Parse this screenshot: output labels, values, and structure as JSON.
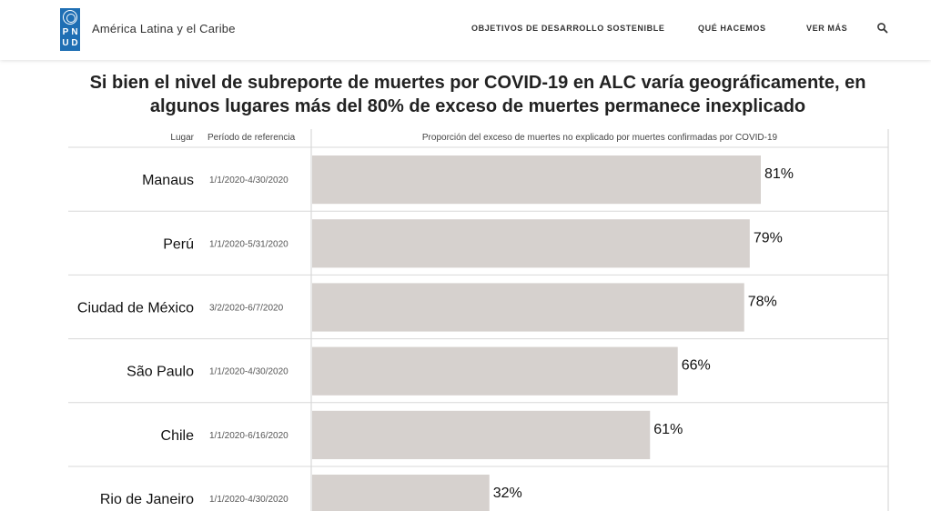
{
  "header": {
    "logo_letters": [
      "P",
      "N",
      "U",
      "D"
    ],
    "brand": "América Latina y el Caribe",
    "nav": [
      "OBJETIVOS DE DESARROLLO SOSTENIBLE",
      "QUÉ HACEMOS",
      "VER MÁS"
    ],
    "search_icon": "search-icon",
    "logo_color": "#1f6fb4"
  },
  "chart_data": {
    "type": "bar",
    "title": "Si bien el nivel de subreporte de muertes por COVID-19 en ALC varía geográficamente, en algunos lugares más del 80% de exceso de muertes permanece inexplicado",
    "columns": {
      "place": "Lugar",
      "period": "Período de referencia",
      "value": "Proporción del exceso de muertes no explicado por muertes confirmadas por COVID-19"
    },
    "categories": [
      "Manaus",
      "Perú",
      "Ciudad de México",
      "São Paulo",
      "Chile",
      "Rio de Janeiro"
    ],
    "periods": [
      "1/1/2020-4/30/2020",
      "1/1/2020-5/31/2020",
      "3/2/2020-6/7/2020",
      "1/1/2020-4/30/2020",
      "1/1/2020-6/16/2020",
      "1/1/2020-4/30/2020"
    ],
    "values": [
      81,
      79,
      78,
      66,
      61,
      32
    ],
    "value_labels": [
      "81%",
      "79%",
      "78%",
      "66%",
      "61%",
      "32%"
    ],
    "unit": "%",
    "orientation": "horizontal",
    "bar_color": "#d6d1ce"
  }
}
